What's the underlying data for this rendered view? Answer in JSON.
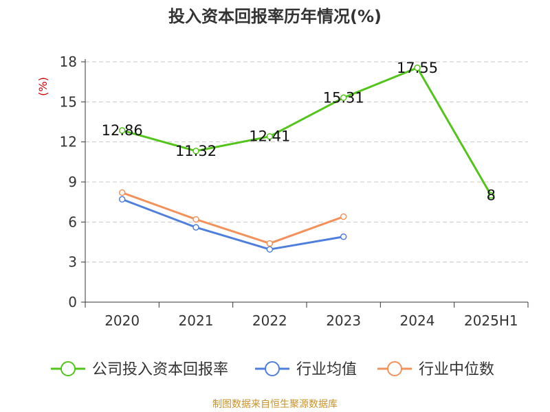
{
  "chart_data": {
    "type": "line",
    "title": "投入资本回报率历年情况(%)",
    "ylabel": "(%)",
    "categories": [
      "2020",
      "2021",
      "2022",
      "2023",
      "2024",
      "2025H1"
    ],
    "ylim": [
      0,
      18
    ],
    "yticks": [
      0,
      3,
      6,
      9,
      12,
      15,
      18
    ],
    "grid": "horizontal dashed",
    "legend_position": "bottom",
    "series": [
      {
        "name": "公司投入资本回报率",
        "color": "#52c41a",
        "values": [
          12.86,
          11.32,
          12.41,
          15.31,
          17.55,
          8
        ],
        "labels": [
          "12.86",
          "11.32",
          "12.41",
          "15.31",
          "17.55",
          "8"
        ]
      },
      {
        "name": "行业均值",
        "color": "#4f7fdc",
        "values": [
          7.7,
          5.6,
          3.95,
          4.9,
          null,
          null
        ]
      },
      {
        "name": "行业中位数",
        "color": "#f4915a",
        "values": [
          8.2,
          6.2,
          4.4,
          6.4,
          null,
          null
        ]
      }
    ]
  },
  "source": "制图数据来自恒生聚源数据库"
}
